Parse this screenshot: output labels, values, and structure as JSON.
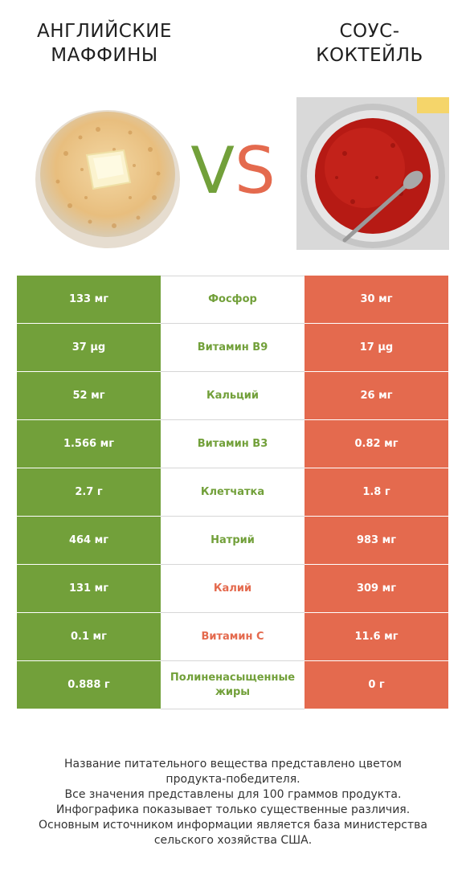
{
  "header": {
    "left_title_line1": "АНГЛИЙСКИЕ",
    "left_title_line2": "МАФФИНЫ",
    "right_title_line1": "СОУС-",
    "right_title_line2": "КОКТЕЙЛЬ",
    "vs_v": "V",
    "vs_s": "S"
  },
  "colors": {
    "left": "#72a03a",
    "right": "#e46a4e"
  },
  "nutrients": [
    {
      "name": "Фосфор",
      "left": "133 мг",
      "right": "30 мг",
      "winner": "left"
    },
    {
      "name": "Витамин B9",
      "left": "37 µg",
      "right": "17 µg",
      "winner": "left"
    },
    {
      "name": "Кальций",
      "left": "52 мг",
      "right": "26 мг",
      "winner": "left"
    },
    {
      "name": "Витамин B3",
      "left": "1.566 мг",
      "right": "0.82 мг",
      "winner": "left"
    },
    {
      "name": "Клетчатка",
      "left": "2.7 г",
      "right": "1.8 г",
      "winner": "left"
    },
    {
      "name": "Натрий",
      "left": "464 мг",
      "right": "983 мг",
      "winner": "left"
    },
    {
      "name": "Калий",
      "left": "131 мг",
      "right": "309 мг",
      "winner": "right"
    },
    {
      "name": "Витамин C",
      "left": "0.1 мг",
      "right": "11.6 мг",
      "winner": "right"
    },
    {
      "name": "Полиненасыщенные жиры",
      "left": "0.888 г",
      "right": "0 г",
      "winner": "left"
    }
  ],
  "footer": {
    "line1": "Название питательного вещества представлено цветом",
    "line2": "продукта-победителя.",
    "line3": "Все значения представлены для 100 граммов продукта.",
    "line4": "Инфографика показывает только существенные различия.",
    "line5": "Основным источником информации является база министерства",
    "line6": "сельского хозяйства США."
  }
}
